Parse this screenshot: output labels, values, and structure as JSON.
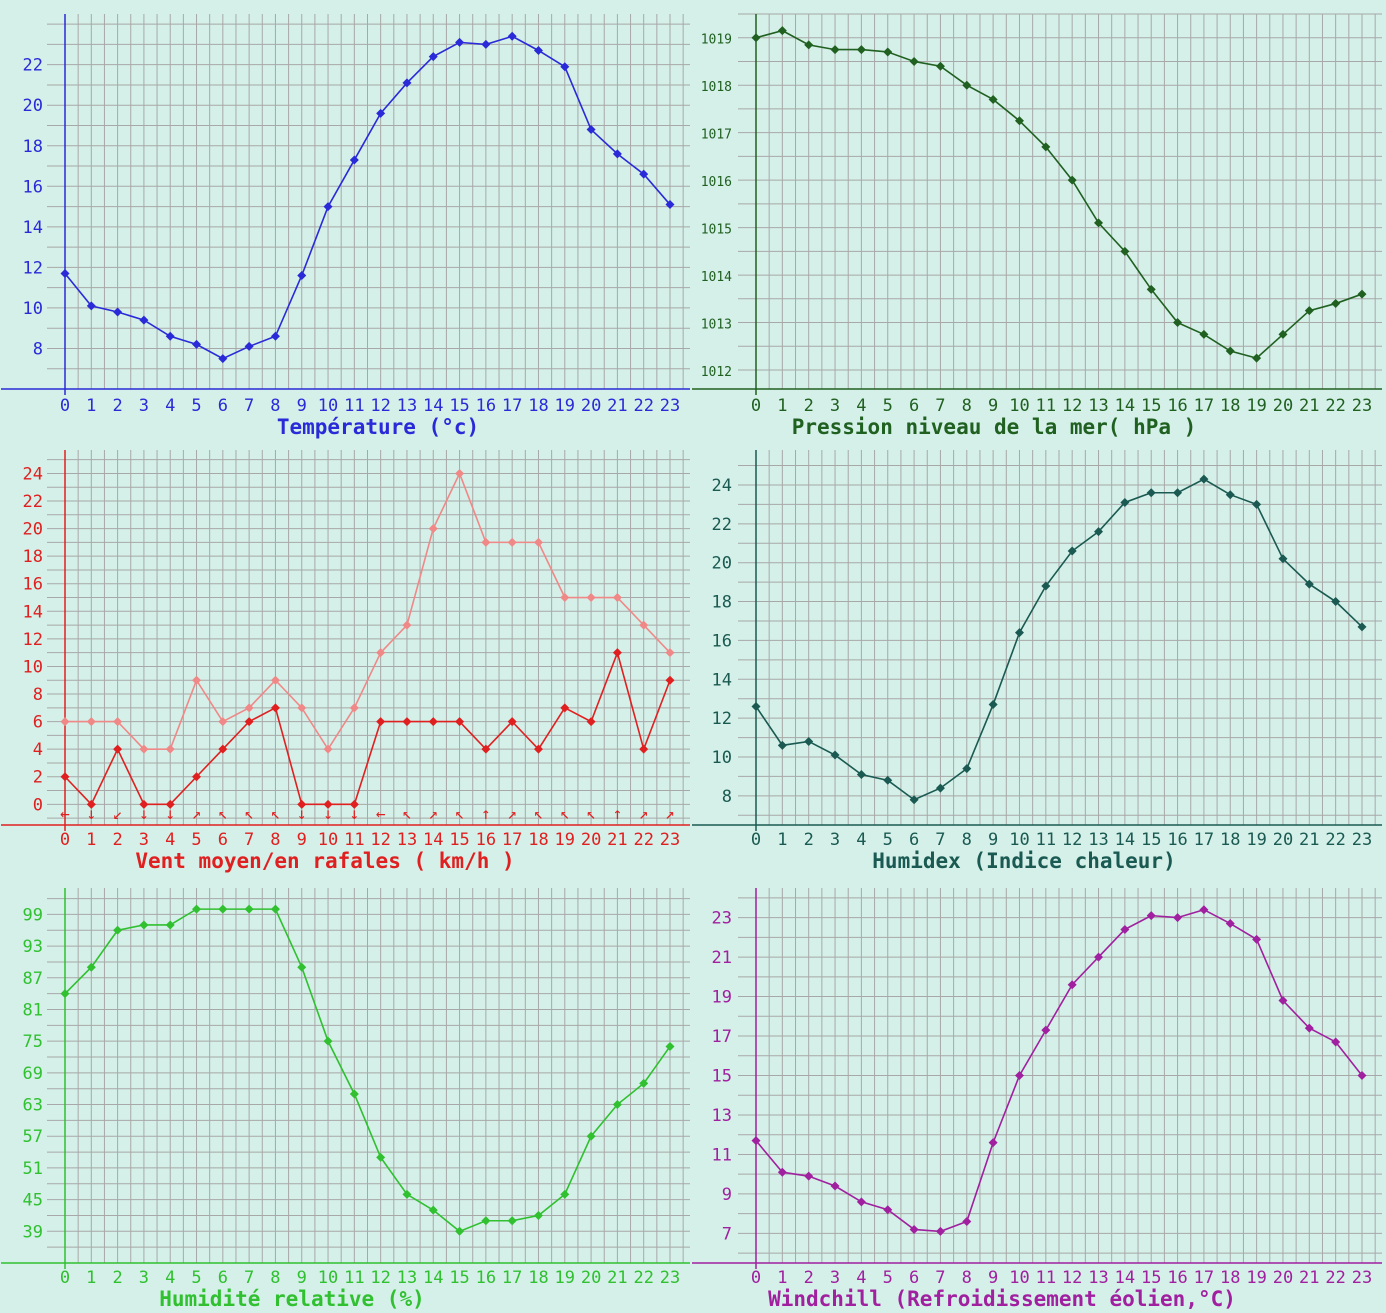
{
  "page": {
    "background": "#d4f0e8",
    "grid_color": "#a8a8a8"
  },
  "x_hours": [
    "0",
    "1",
    "2",
    "3",
    "4",
    "5",
    "6",
    "7",
    "8",
    "9",
    "10",
    "11",
    "12",
    "13",
    "14",
    "15",
    "16",
    "17",
    "18",
    "19",
    "20",
    "21",
    "22",
    "23"
  ],
  "chart_data": [
    {
      "id": "temperature",
      "type": "line",
      "title": "Température (°c)",
      "color": "#2a2ad8",
      "x": [
        0,
        1,
        2,
        3,
        4,
        5,
        6,
        7,
        8,
        9,
        10,
        11,
        12,
        13,
        14,
        15,
        16,
        17,
        18,
        19,
        20,
        21,
        22,
        23
      ],
      "ylim": [
        6,
        24.5
      ],
      "yticks": [
        "8",
        "10",
        "12",
        "14",
        "16",
        "18",
        "20",
        "22"
      ],
      "series": [
        {
          "values": [
            11.7,
            10.1,
            9.8,
            9.4,
            8.6,
            8.2,
            7.5,
            8.1,
            8.6,
            11.6,
            15.0,
            17.3,
            19.6,
            21.1,
            22.4,
            23.1,
            23.0,
            23.4,
            22.7,
            21.9,
            18.8,
            17.6,
            16.6,
            15.1
          ]
        }
      ]
    },
    {
      "id": "pression",
      "type": "line",
      "title": "Pression niveau de la mer( hPa )",
      "color": "#206020",
      "x": [
        0,
        1,
        2,
        3,
        4,
        5,
        6,
        7,
        8,
        9,
        10,
        11,
        12,
        13,
        14,
        15,
        16,
        17,
        18,
        19,
        20,
        21,
        22,
        23
      ],
      "ylim": [
        1011.6,
        1019.5
      ],
      "yticks": [
        "1012",
        "1013",
        "1014",
        "1015",
        "1016",
        "1017",
        "1018",
        "1019"
      ],
      "series": [
        {
          "values": [
            1019.0,
            1019.15,
            1018.85,
            1018.75,
            1018.75,
            1018.7,
            1018.5,
            1018.4,
            1018.0,
            1017.7,
            1017.25,
            1016.7,
            1016.0,
            1015.1,
            1014.5,
            1013.7,
            1013.0,
            1012.75,
            1012.4,
            1012.25,
            1012.75,
            1013.25,
            1013.4,
            1013.6
          ]
        }
      ]
    },
    {
      "id": "vent",
      "type": "line",
      "title": "Vent moyen/en rafales ( km/h )",
      "color": "#e02020",
      "x": [
        0,
        1,
        2,
        3,
        4,
        5,
        6,
        7,
        8,
        9,
        10,
        11,
        12,
        13,
        14,
        15,
        16,
        17,
        18,
        19,
        20,
        21,
        22,
        23
      ],
      "ylim": [
        -1.5,
        25.7
      ],
      "yticks": [
        "0",
        "2",
        "4",
        "6",
        "8",
        "10",
        "12",
        "14",
        "16",
        "18",
        "20",
        "22",
        "24"
      ],
      "wind_arrows": [
        "←",
        "↓",
        "↙",
        "↓",
        "↓",
        "↗",
        "↖",
        "↖",
        "↖",
        "↓",
        "↓",
        "↓",
        "←",
        "↖",
        "↗",
        "↖",
        "↑",
        "↗",
        "↖",
        "↖",
        "↖",
        "↑",
        "↗",
        "↗"
      ],
      "series": [
        {
          "name": "",
          "color": "#f08888",
          "values": [
            6,
            6,
            6,
            4,
            4,
            9,
            6,
            7,
            9,
            7,
            4,
            7,
            11,
            13,
            20,
            24,
            19,
            19,
            19,
            15,
            15,
            15,
            13,
            11
          ]
        },
        {
          "name": "",
          "color": "#e02020",
          "values": [
            2,
            0,
            4,
            0,
            0,
            2,
            4,
            6,
            7,
            0,
            0,
            0,
            6,
            6,
            6,
            6,
            4,
            6,
            4,
            7,
            6,
            11,
            4,
            9
          ]
        }
      ]
    },
    {
      "id": "humidex",
      "type": "line",
      "title": "Humidex (Indice chaleur)",
      "color": "#1a5a52",
      "x": [
        0,
        1,
        2,
        3,
        4,
        5,
        6,
        7,
        8,
        9,
        10,
        11,
        12,
        13,
        14,
        15,
        16,
        17,
        18,
        19,
        20,
        21,
        22,
        23
      ],
      "ylim": [
        6.5,
        25.8
      ],
      "yticks": [
        "8",
        "10",
        "12",
        "14",
        "16",
        "18",
        "20",
        "22",
        "24"
      ],
      "series": [
        {
          "values": [
            12.6,
            10.6,
            10.8,
            10.1,
            9.1,
            8.8,
            7.8,
            8.4,
            9.4,
            12.7,
            16.4,
            18.8,
            20.6,
            21.6,
            23.1,
            23.6,
            23.6,
            24.3,
            23.5,
            23.0,
            20.2,
            18.9,
            18.0,
            16.7
          ]
        }
      ]
    },
    {
      "id": "humidite",
      "type": "line",
      "title": "Humidité relative (%)",
      "color": "#30c030",
      "x": [
        0,
        1,
        2,
        3,
        4,
        5,
        6,
        7,
        8,
        9,
        10,
        11,
        12,
        13,
        14,
        15,
        16,
        17,
        18,
        19,
        20,
        21,
        22,
        23
      ],
      "ylim": [
        33,
        104
      ],
      "yticks": [
        "39",
        "45",
        "51",
        "57",
        "63",
        "69",
        "75",
        "81",
        "87",
        "93",
        "99"
      ],
      "series": [
        {
          "values": [
            84,
            89,
            96,
            97,
            97,
            100,
            100,
            100,
            100,
            89,
            75,
            65,
            53,
            46,
            43,
            39,
            41,
            41,
            42,
            46,
            57,
            63,
            67,
            74
          ]
        }
      ]
    },
    {
      "id": "windchill",
      "type": "line",
      "title": "Windchill (Refroidissement éolien,°C)",
      "color": "#a020a0",
      "x": [
        0,
        1,
        2,
        3,
        4,
        5,
        6,
        7,
        8,
        9,
        10,
        11,
        12,
        13,
        14,
        15,
        16,
        17,
        18,
        19,
        20,
        21,
        22,
        23
      ],
      "ylim": [
        5.5,
        24.5
      ],
      "yticks": [
        "7",
        "9",
        "11",
        "13",
        "15",
        "17",
        "19",
        "21",
        "23"
      ],
      "series": [
        {
          "values": [
            11.7,
            10.1,
            9.9,
            9.4,
            8.6,
            8.2,
            7.2,
            7.1,
            7.6,
            11.6,
            15.0,
            17.3,
            19.6,
            21.0,
            22.4,
            23.1,
            23.0,
            23.4,
            22.7,
            21.9,
            18.8,
            17.4,
            16.7,
            15.0
          ]
        }
      ]
    }
  ]
}
